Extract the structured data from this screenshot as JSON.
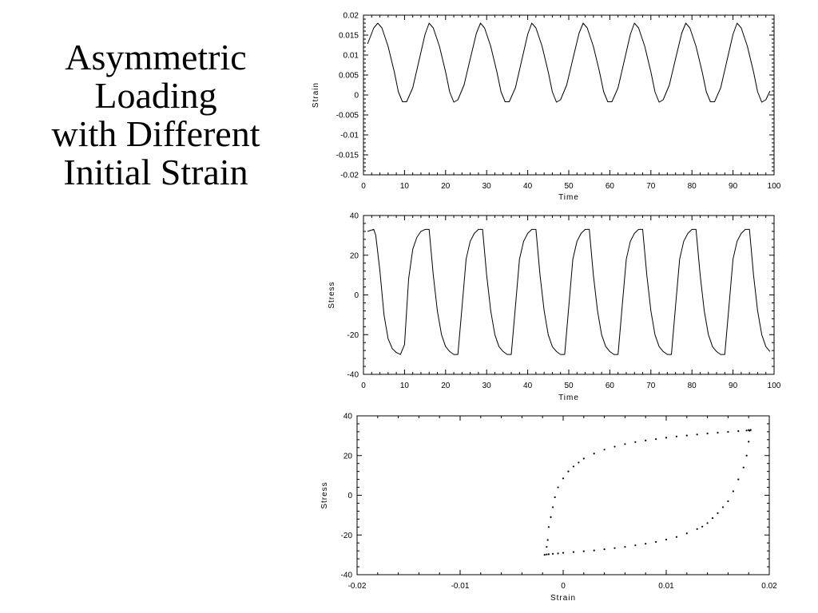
{
  "slide": {
    "title_lines": [
      "Asymmetric",
      "Loading",
      "with Different",
      "Initial Strain"
    ]
  },
  "chart_data": [
    {
      "type": "line",
      "title": "",
      "xlabel": "Time",
      "ylabel": "Strain",
      "xlim": [
        0,
        100
      ],
      "ylim": [
        -0.02,
        0.02
      ],
      "x_ticks": [
        0,
        10,
        20,
        30,
        40,
        50,
        60,
        70,
        80,
        90,
        100
      ],
      "y_ticks": [
        -0.02,
        -0.015,
        -0.01,
        -0.005,
        0,
        0.005,
        0.01,
        0.015,
        0.02
      ],
      "x_tick_labels": [
        "0",
        "10",
        "20",
        "30",
        "40",
        "50",
        "60",
        "70",
        "80",
        "90",
        "100"
      ],
      "y_tick_labels": [
        "-0.02",
        "-0.015",
        "-0.01",
        "-0.005",
        "0",
        "0.005",
        "0.01",
        "0.015",
        "0.02"
      ],
      "grid": false,
      "series": [
        {
          "x": [
            1,
            2.5,
            3.5,
            4.5,
            6,
            7.5,
            8.5,
            9.5,
            10.5,
            12,
            13.5,
            15,
            16,
            17,
            18.5,
            20,
            21,
            22,
            23,
            24.5,
            26,
            27.5,
            28.5,
            29.5,
            31,
            32.5,
            33.5,
            34.5,
            35.5,
            37,
            38.5,
            40,
            41,
            42,
            43.5,
            45,
            46,
            47,
            48,
            49.5,
            51,
            52.5,
            53.5,
            54.5,
            56,
            57.5,
            58.5,
            59.5,
            60.5,
            62,
            63.5,
            65,
            66,
            67,
            68.5,
            70,
            71,
            72,
            73,
            74.5,
            76,
            77.5,
            78.5,
            79.5,
            81,
            82.5,
            83.5,
            84.5,
            85.5,
            87,
            88.5,
            90,
            91,
            92,
            93.5,
            95,
            96,
            97,
            98,
            99
          ],
          "values": [
            0.0128,
            0.0168,
            0.018,
            0.0168,
            0.0122,
            0.0058,
            0.0008,
            -0.0017,
            -0.0017,
            0.0018,
            0.0085,
            0.0152,
            0.018,
            0.0168,
            0.0122,
            0.0058,
            0.0008,
            -0.0018,
            -0.0012,
            0.0025,
            0.009,
            0.0155,
            0.018,
            0.0168,
            0.0122,
            0.0058,
            0.0008,
            -0.0017,
            -0.0017,
            0.0018,
            0.0085,
            0.0152,
            0.018,
            0.0168,
            0.0122,
            0.0058,
            0.0008,
            -0.0018,
            -0.0012,
            0.0025,
            0.009,
            0.0155,
            0.018,
            0.0168,
            0.0122,
            0.0058,
            0.0008,
            -0.0017,
            -0.0017,
            0.0018,
            0.0085,
            0.0152,
            0.018,
            0.0168,
            0.0122,
            0.0058,
            0.0008,
            -0.0018,
            -0.0012,
            0.0025,
            0.009,
            0.0155,
            0.018,
            0.0168,
            0.0122,
            0.0058,
            0.0008,
            -0.0017,
            -0.0017,
            0.0018,
            0.0085,
            0.0152,
            0.018,
            0.0168,
            0.0122,
            0.0058,
            0.0008,
            -0.0018,
            -0.0012,
            0.001
          ]
        }
      ]
    },
    {
      "type": "line",
      "title": "",
      "xlabel": "Time",
      "ylabel": "Stress",
      "xlim": [
        0,
        100
      ],
      "ylim": [
        -40,
        40
      ],
      "x_ticks": [
        0,
        10,
        20,
        30,
        40,
        50,
        60,
        70,
        80,
        90,
        100
      ],
      "y_ticks": [
        -40,
        -20,
        0,
        20,
        40
      ],
      "x_tick_labels": [
        "0",
        "10",
        "20",
        "30",
        "40",
        "50",
        "60",
        "70",
        "80",
        "90",
        "100"
      ],
      "y_tick_labels": [
        "-40",
        "-20",
        "0",
        "20",
        "40"
      ],
      "grid": false,
      "series": [
        {
          "x": [
            1,
            2.5,
            3,
            4,
            5,
            6,
            7,
            8,
            9,
            10,
            11,
            12,
            13,
            14,
            15,
            16,
            17,
            18,
            19,
            20,
            21,
            22,
            23,
            24,
            25,
            26,
            27,
            28,
            29,
            30,
            31,
            32,
            33,
            34,
            35,
            36,
            37,
            38,
            39,
            40,
            41,
            42,
            43,
            44,
            45,
            46,
            47,
            48,
            49,
            50,
            51,
            52,
            53,
            54,
            55,
            56,
            57,
            58,
            59,
            60,
            61,
            62,
            63,
            64,
            65,
            66,
            67,
            68,
            69,
            70,
            71,
            72,
            73,
            74,
            75,
            76,
            77,
            78,
            79,
            80,
            81,
            82,
            83,
            84,
            85,
            86,
            87,
            88,
            89,
            90,
            91,
            92,
            93,
            94,
            95,
            96,
            97,
            98,
            99
          ],
          "values": [
            32,
            33,
            30,
            12,
            -10,
            -22,
            -27,
            -29,
            -30,
            -25,
            8,
            23,
            29,
            32,
            33,
            33,
            10,
            -8,
            -20,
            -26,
            -28.5,
            -30,
            -30,
            -6,
            18,
            27,
            31,
            33,
            33,
            10,
            -8,
            -20,
            -26,
            -28.5,
            -30,
            -30,
            -6,
            18,
            27,
            31,
            33,
            33,
            10,
            -8,
            -20,
            -26,
            -28.5,
            -30,
            -30,
            -6,
            18,
            27,
            31,
            33,
            33,
            10,
            -8,
            -20,
            -26,
            -28.5,
            -30,
            -30,
            -6,
            18,
            27,
            31,
            33,
            33,
            10,
            -8,
            -20,
            -26,
            -28.5,
            -30,
            -30,
            -6,
            18,
            27,
            31,
            33,
            33,
            10,
            -8,
            -20,
            -26,
            -28.5,
            -30,
            -30,
            -6,
            18,
            27,
            31,
            33,
            33,
            10,
            -8,
            -20,
            -26,
            -28.5
          ]
        }
      ]
    },
    {
      "type": "scatter",
      "title": "",
      "xlabel": "Strain",
      "ylabel": "Stress",
      "xlim": [
        -0.02,
        0.02
      ],
      "ylim": [
        -40,
        40
      ],
      "x_ticks": [
        -0.02,
        -0.01,
        0,
        0.01,
        0.02
      ],
      "y_ticks": [
        -40,
        -20,
        0,
        20,
        40
      ],
      "x_tick_labels": [
        "-0.02",
        "-0.01",
        "0",
        "0.01",
        "0.02"
      ],
      "y_tick_labels": [
        "-40",
        "-20",
        "0",
        "20",
        "40"
      ],
      "grid": false,
      "series": [
        {
          "x": [
            -0.0018,
            -0.0016,
            -0.0014,
            -0.001,
            -0.0005,
            0.0,
            0.001,
            0.002,
            0.003,
            0.004,
            0.005,
            0.006,
            0.007,
            0.008,
            0.009,
            0.01,
            0.011,
            0.012,
            0.013,
            0.0135,
            0.014,
            0.0145,
            0.015,
            0.0155,
            0.016,
            0.0165,
            0.017,
            0.0175,
            0.0178,
            0.018,
            0.0181,
            -0.0016,
            -0.0015,
            -0.0014,
            -0.0012,
            -0.001,
            -0.0008,
            -0.0005,
            0.0,
            0.0005,
            0.001,
            0.0015,
            0.002,
            0.003,
            0.004,
            0.005,
            0.006,
            0.007,
            0.008,
            0.009,
            0.01,
            0.011,
            0.012,
            0.013,
            0.014,
            0.015,
            0.016,
            0.017,
            0.0178,
            0.018,
            0.0182
          ],
          "values": [
            -30,
            -29.8,
            -29.7,
            -29.5,
            -29.3,
            -29,
            -28.6,
            -28.2,
            -27.8,
            -27.2,
            -26.6,
            -26,
            -25.2,
            -24.4,
            -23.5,
            -22.3,
            -21,
            -19.2,
            -17,
            -15.8,
            -14,
            -11.5,
            -9,
            -6,
            -3,
            2,
            8,
            14,
            20,
            27,
            32.5,
            -26,
            -22.5,
            -16,
            -11,
            -6,
            -1,
            4,
            8.5,
            12,
            14.5,
            16.5,
            18.5,
            21,
            23,
            24.5,
            25.8,
            26.8,
            27.6,
            28.3,
            29,
            29.6,
            30.1,
            30.6,
            31.1,
            31.5,
            31.9,
            32.3,
            32.6,
            32.8,
            32.9
          ]
        }
      ]
    }
  ]
}
